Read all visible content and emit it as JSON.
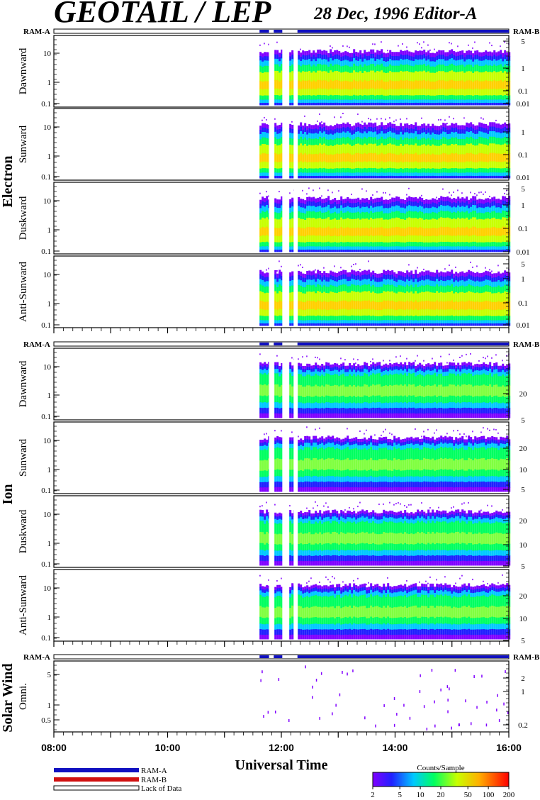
{
  "header": {
    "title": "GEOTAIL / LEP",
    "date_editor": "28 Dec, 1996   Editor-A"
  },
  "bars": {
    "ram_a": "RAM-A",
    "ram_b": "RAM-B"
  },
  "colors": {
    "ram_a": "#1010c0",
    "ram_b": "#d01010",
    "lack_of_data": "#ffffff"
  },
  "chart_data": {
    "type": "heatmap",
    "time_range": [
      "08:00",
      "16:00"
    ],
    "xlabel": "Universal Time",
    "x_ticks": [
      "08:00",
      "10:00",
      "12:00",
      "14:00",
      "16:00"
    ],
    "data_start": "11:37",
    "gaps": [
      [
        "11:47",
        "11:52"
      ],
      [
        "12:01",
        "12:07"
      ],
      [
        "12:13",
        "12:17"
      ]
    ],
    "groups": [
      {
        "name": "Electron",
        "panels": [
          {
            "label": "Dawnward",
            "left_ticks": [
              "10",
              "1",
              "0.1"
            ],
            "right_ticks": [
              "5",
              "1",
              "0.1",
              "0.01"
            ]
          },
          {
            "label": "Sunward",
            "left_ticks": [
              "10",
              "1",
              "0.1"
            ],
            "right_ticks": [
              "1",
              "0.1",
              "0.01"
            ]
          },
          {
            "label": "Duskward",
            "left_ticks": [
              "10",
              "1",
              "0.1"
            ],
            "right_ticks": [
              "5",
              "1",
              "0.1",
              "0.01"
            ]
          },
          {
            "label": "Anti-Sunward",
            "left_ticks": [
              "10",
              "1",
              "0.1"
            ],
            "right_ticks": [
              "5",
              "1",
              "0.1",
              "0.01"
            ]
          }
        ]
      },
      {
        "name": "Ion",
        "panels": [
          {
            "label": "Dawnward",
            "left_ticks": [
              "10",
              "1",
              "0.1"
            ],
            "right_ticks": [
              "20",
              "5"
            ]
          },
          {
            "label": "Sunward",
            "left_ticks": [
              "10",
              "1",
              "0.1"
            ],
            "right_ticks": [
              "20",
              "10",
              "5"
            ]
          },
          {
            "label": "Duskward",
            "left_ticks": [
              "10",
              "1",
              "0.1"
            ],
            "right_ticks": [
              "20",
              "10",
              "5"
            ]
          },
          {
            "label": "Anti-Sunward",
            "left_ticks": [
              "10",
              "1",
              "0.1"
            ],
            "right_ticks": [
              "20",
              "10",
              "5"
            ]
          }
        ]
      },
      {
        "name": "Solar Wind",
        "panels": [
          {
            "label": "Omni.",
            "left_ticks": [
              "5",
              "1",
              "0.5"
            ],
            "right_ticks": [
              "2",
              "1",
              "0.2"
            ]
          }
        ]
      }
    ],
    "legend": {
      "items": [
        "RAM-A",
        "RAM-B",
        "Lack of Data"
      ]
    },
    "colorbar": {
      "title": "Counts/Sample",
      "ticks": [
        "2",
        "5",
        "10",
        "20",
        "50",
        "100",
        "200"
      ],
      "range": [
        2,
        200
      ],
      "scale": "log"
    }
  }
}
